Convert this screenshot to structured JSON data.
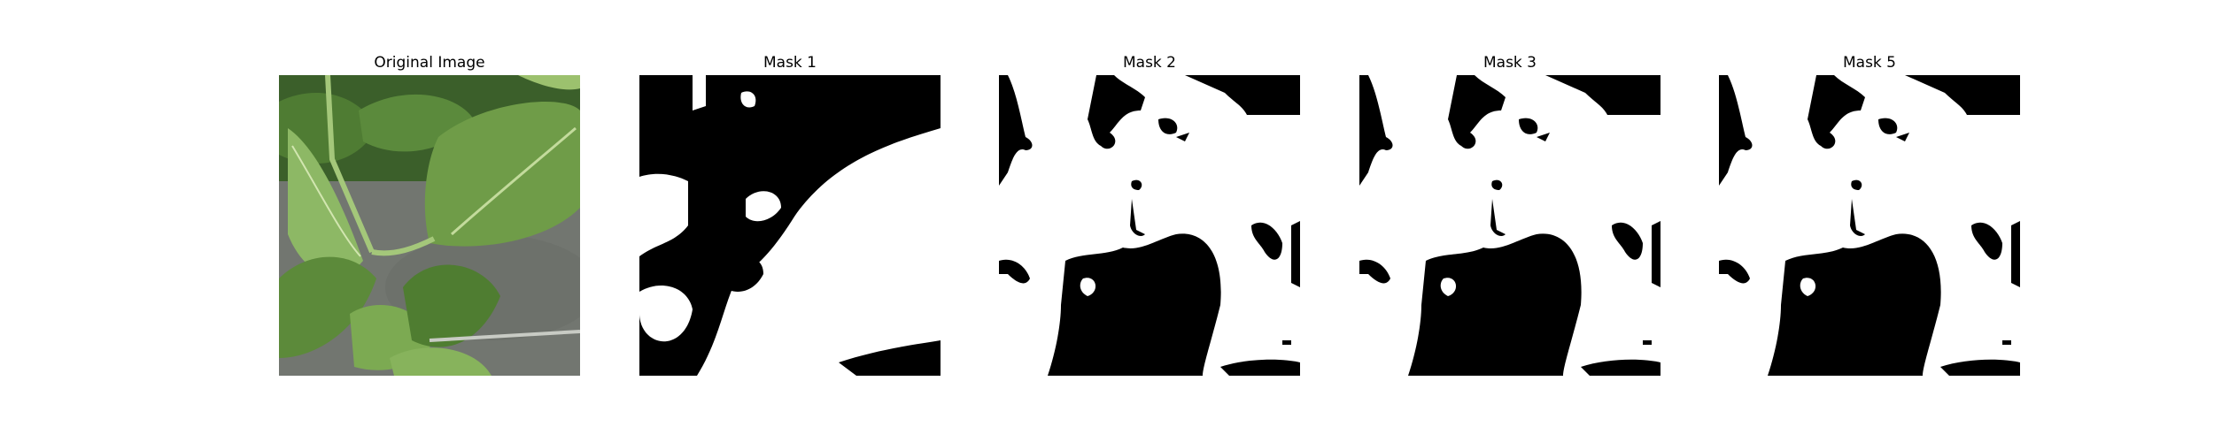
{
  "panels": [
    {
      "title": "Original Image",
      "kind": "photo"
    },
    {
      "title": "Mask 1",
      "kind": "mask"
    },
    {
      "title": "Mask 2",
      "kind": "mask"
    },
    {
      "title": "Mask 3",
      "kind": "mask"
    },
    {
      "title": "Mask 5",
      "kind": "mask"
    }
  ],
  "colors": {
    "mask_foreground": "#000000",
    "mask_background": "#ffffff",
    "leaf_dark": "#3f6f2a",
    "leaf_mid": "#5f8f3d",
    "leaf_light": "#93bd68",
    "ground": "#777a74"
  }
}
